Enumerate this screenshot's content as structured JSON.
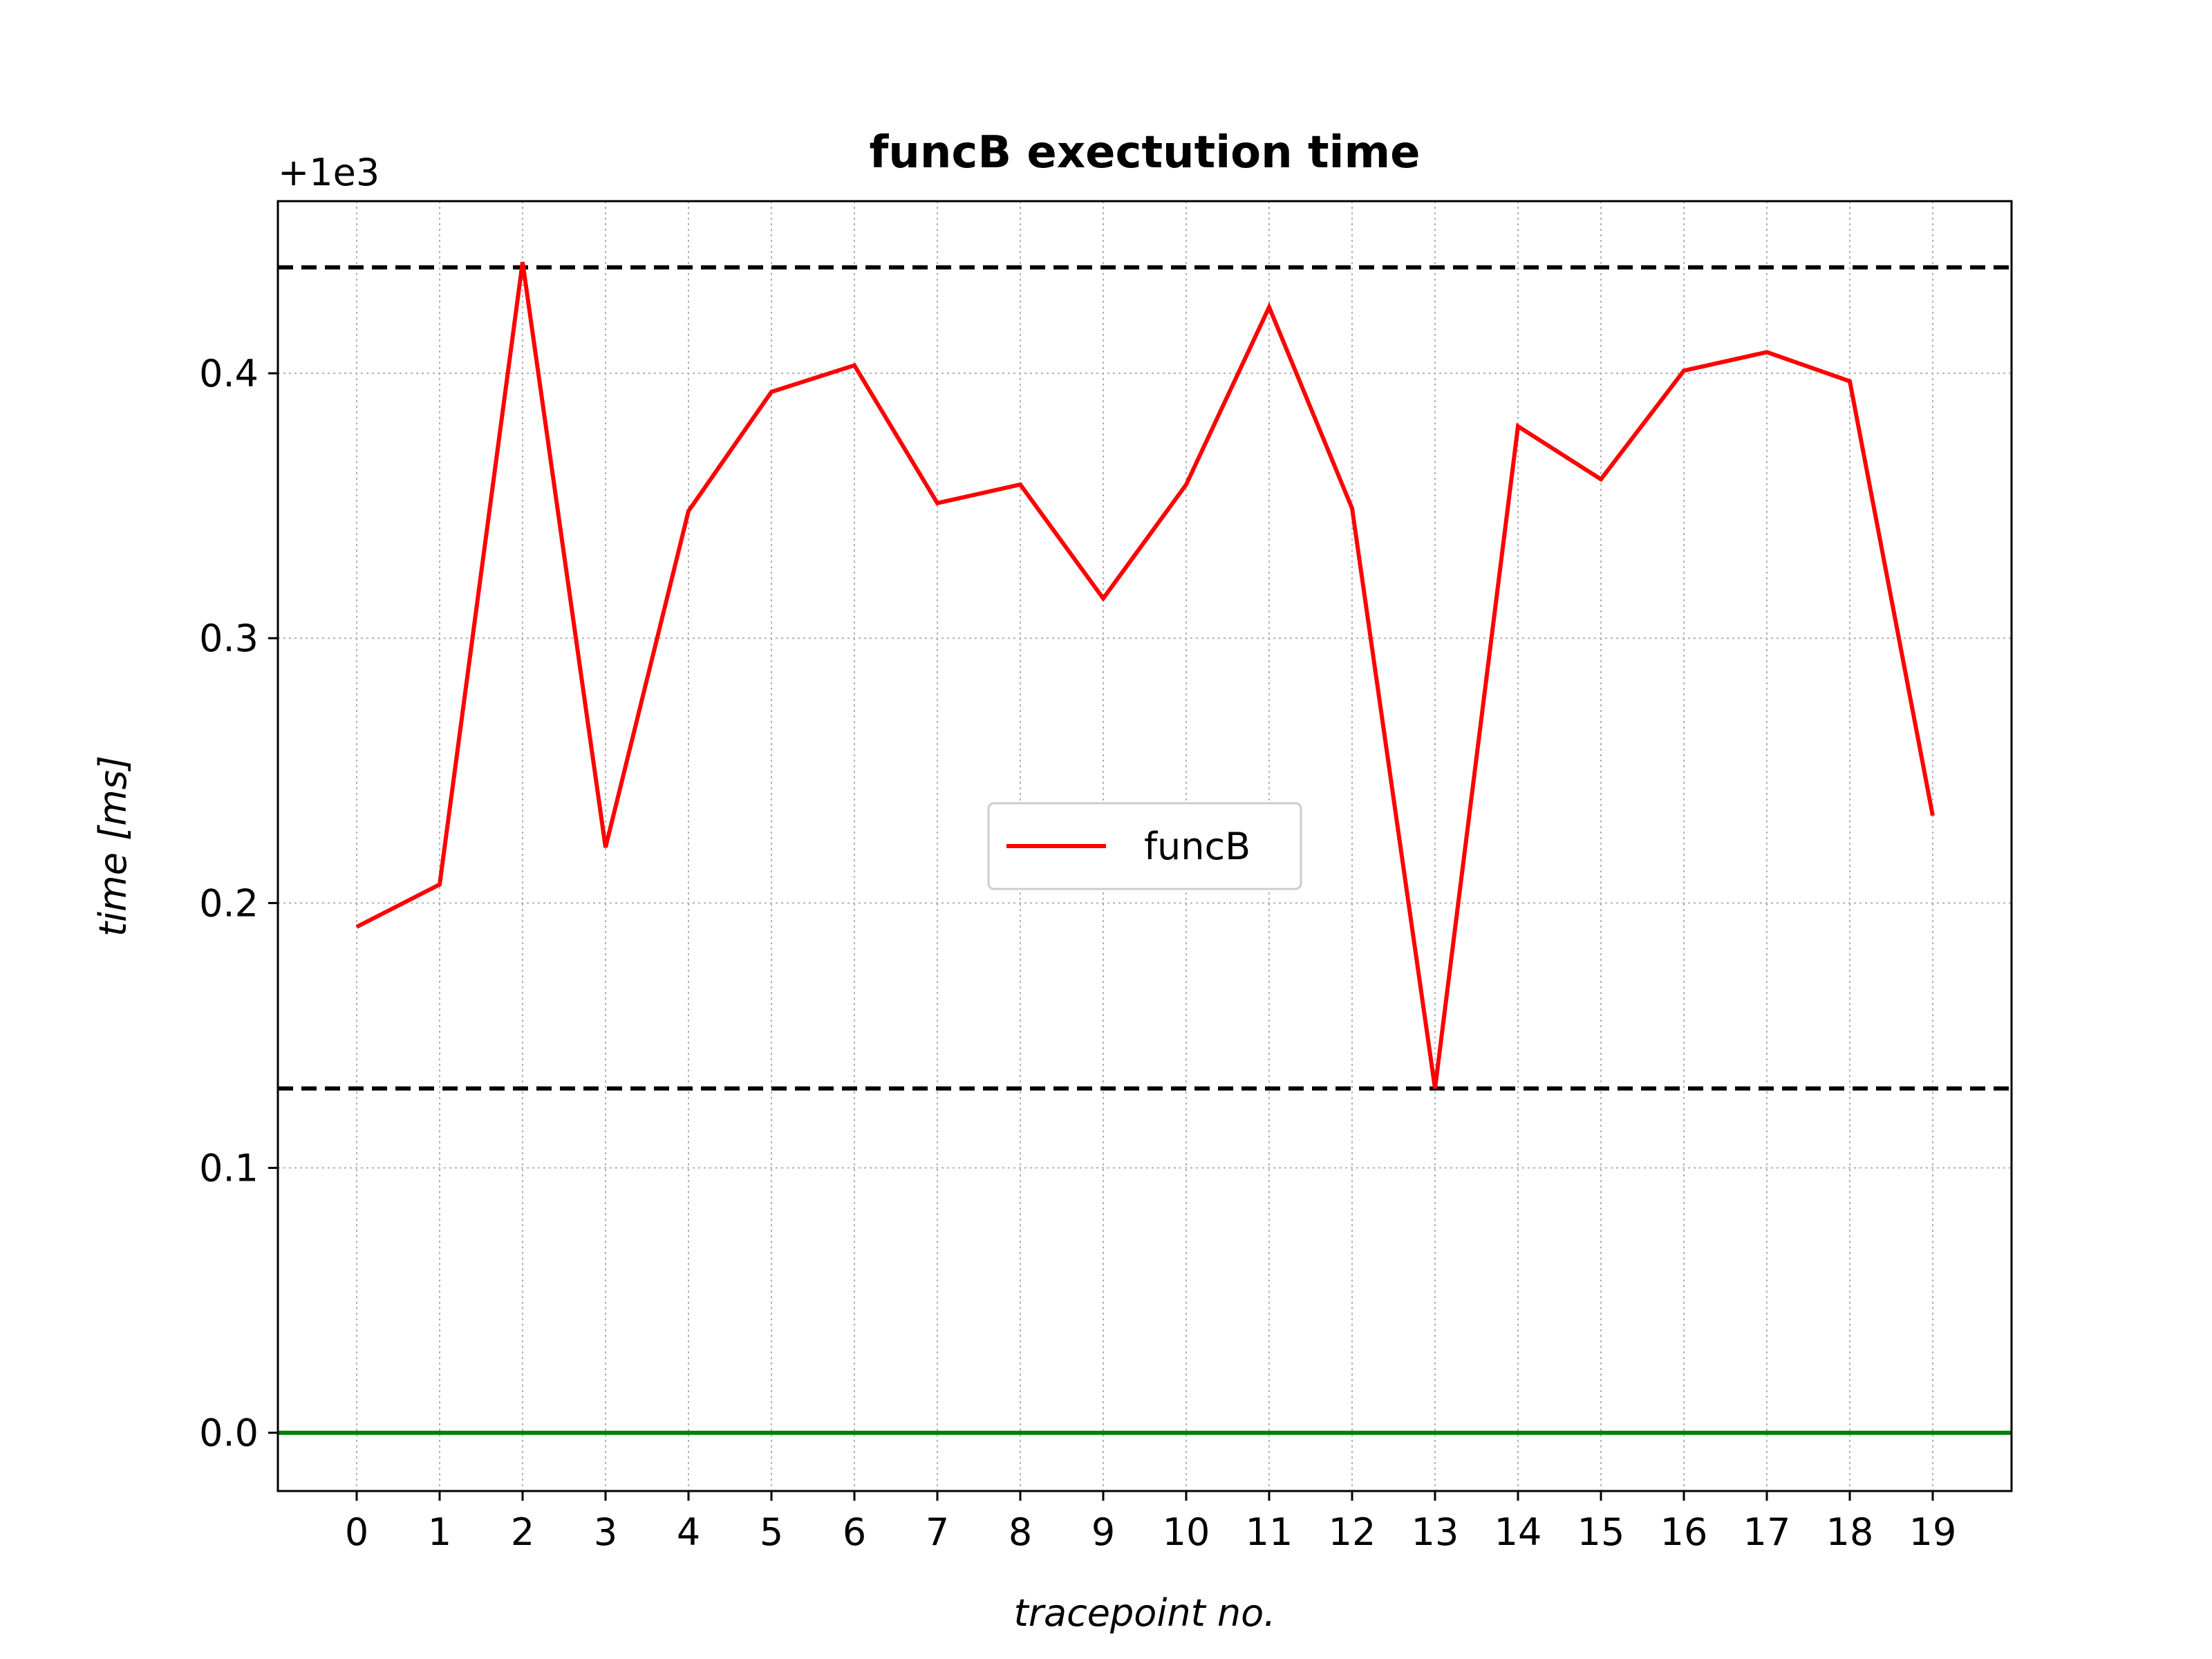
{
  "chart_data": {
    "type": "line",
    "title": "funcB exectution time",
    "xlabel": "tracepoint no.",
    "ylabel": "time [ms]",
    "y_offset_label": "+1e3",
    "x": [
      0,
      1,
      2,
      3,
      4,
      5,
      6,
      7,
      8,
      9,
      10,
      11,
      12,
      13,
      14,
      15,
      16,
      17,
      18,
      19
    ],
    "x_tick_labels": [
      "0",
      "1",
      "2",
      "3",
      "4",
      "5",
      "6",
      "7",
      "8",
      "9",
      "10",
      "11",
      "12",
      "13",
      "14",
      "15",
      "16",
      "17",
      "18",
      "19"
    ],
    "y_tick_labels": [
      "0.0",
      "0.1",
      "0.2",
      "0.3",
      "0.4"
    ],
    "y_ticks": [
      0.0,
      0.1,
      0.2,
      0.3,
      0.4
    ],
    "xlim": [
      -0.95,
      19.95
    ],
    "ylim": [
      -0.022,
      0.465
    ],
    "grid": true,
    "legend_position": "center",
    "series": [
      {
        "name": "funcB",
        "color": "#ff0000",
        "values": [
          0.191,
          0.207,
          0.442,
          0.221,
          0.348,
          0.393,
          0.403,
          0.351,
          0.358,
          0.315,
          0.358,
          0.425,
          0.349,
          0.13,
          0.38,
          0.36,
          0.401,
          0.408,
          0.397,
          0.233
        ]
      }
    ],
    "reference_lines": [
      {
        "y": 0.44,
        "color": "#000000",
        "style": "dashed"
      },
      {
        "y": 0.13,
        "color": "#000000",
        "style": "dashed"
      },
      {
        "y": 0.0,
        "color": "#008000",
        "style": "solid"
      }
    ]
  }
}
